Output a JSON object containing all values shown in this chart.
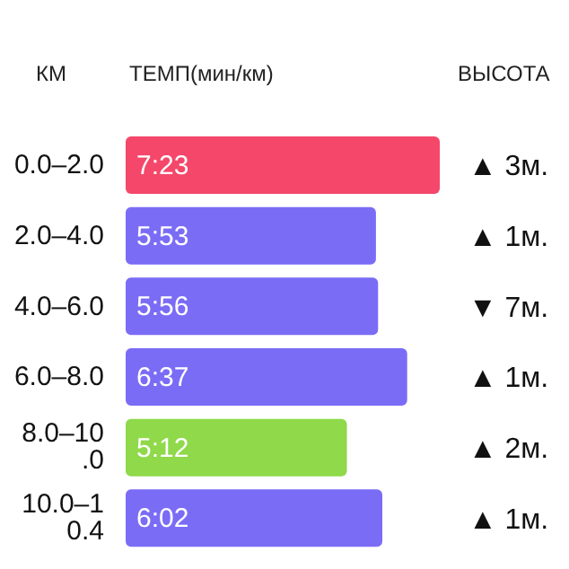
{
  "chart_data": {
    "type": "bar",
    "orientation": "horizontal",
    "ylabel": "КМ",
    "xlabel": "ТЕМП(мин/км)",
    "y2label": "ВЫСОТА",
    "categories": [
      "0.0–2.0",
      "2.0–4.0",
      "4.0–6.0",
      "6.0–8.0",
      "8.0–10.0",
      "10.0–10.4"
    ],
    "values": [
      7.383,
      5.883,
      5.933,
      6.617,
      5.2,
      6.033
    ],
    "value_labels": [
      "7:23",
      "5:53",
      "5:56",
      "6:37",
      "5:12",
      "6:02"
    ],
    "colors": [
      "#f5476a",
      "#7b6cf6",
      "#7b6cf6",
      "#7b6cf6",
      "#8fd94a",
      "#7b6cf6"
    ],
    "annotations": [
      "▲ 3м.",
      "▲ 1м.",
      "▼ 7м.",
      "▲ 1м.",
      "▲ 2м.",
      "▲ 1м."
    ]
  }
}
